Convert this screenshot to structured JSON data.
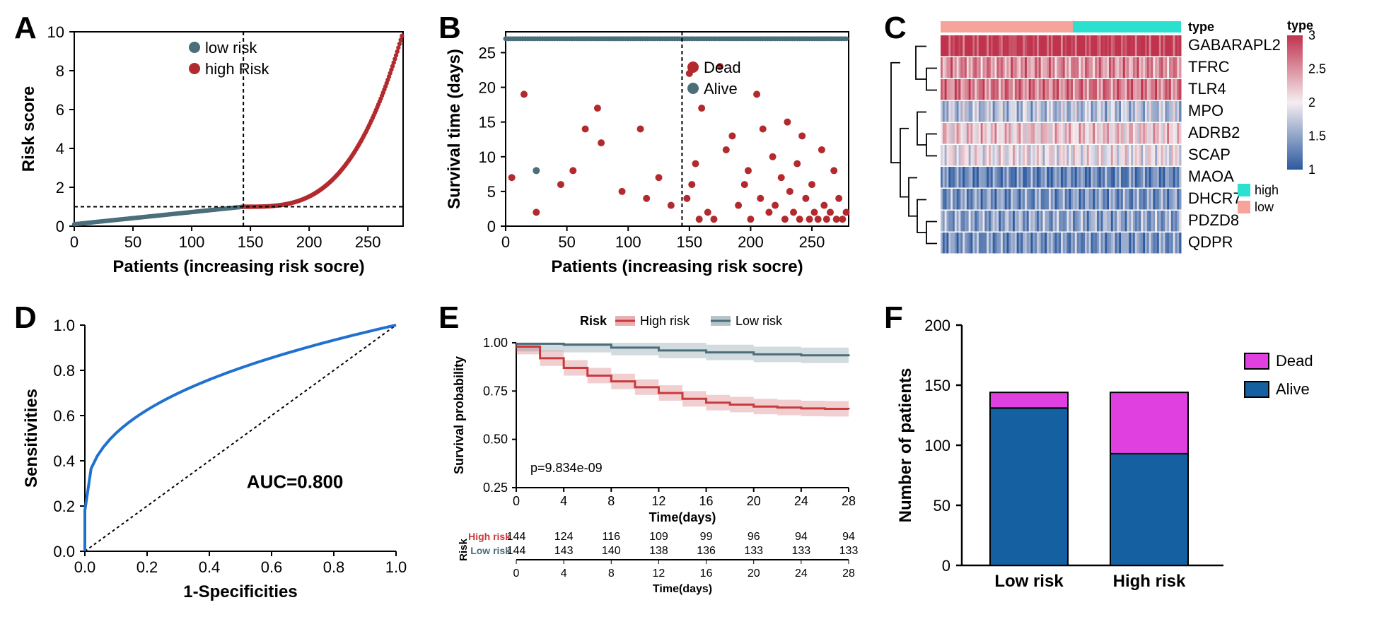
{
  "panelA": {
    "label": "A",
    "xlabel": "Patients (increasing risk socre)",
    "ylabel": "Risk score",
    "xticks": [
      0,
      50,
      100,
      150,
      200,
      250
    ],
    "yticks": [
      0,
      2,
      4,
      6,
      8,
      10
    ],
    "xlim": [
      0,
      280
    ],
    "ylim": [
      0,
      10
    ],
    "cutoff_x": 144,
    "cutoff_y": 1.0,
    "legend": {
      "low": "low risk",
      "high": "high Risk",
      "low_color": "#4a6e7a",
      "high_color": "#b22a2e"
    },
    "line_color_low": "#4a6e7a",
    "line_color_high": "#b22a2e"
  },
  "panelB": {
    "label": "B",
    "xlabel": "Patients (increasing risk socre)",
    "ylabel": "Survival time (days)",
    "xticks": [
      0,
      50,
      100,
      150,
      200,
      250
    ],
    "yticks": [
      0,
      5,
      10,
      15,
      20,
      25
    ],
    "xlim": [
      0,
      280
    ],
    "ylim": [
      0,
      28
    ],
    "cutoff_x": 144,
    "legend": {
      "dead": "Dead",
      "alive": "Alive",
      "dead_color": "#b22a2e",
      "alive_color": "#4a6e7a"
    },
    "points_dead": [
      [
        5,
        7
      ],
      [
        15,
        19
      ],
      [
        25,
        2
      ],
      [
        45,
        6
      ],
      [
        55,
        8
      ],
      [
        65,
        14
      ],
      [
        75,
        17
      ],
      [
        78,
        12
      ],
      [
        95,
        5
      ],
      [
        110,
        14
      ],
      [
        115,
        4
      ],
      [
        125,
        7
      ],
      [
        135,
        3
      ],
      [
        150,
        22
      ],
      [
        155,
        9
      ],
      [
        160,
        17
      ],
      [
        165,
        2
      ],
      [
        170,
        1
      ],
      [
        175,
        23
      ],
      [
        180,
        11
      ],
      [
        185,
        13
      ],
      [
        190,
        3
      ],
      [
        195,
        6
      ],
      [
        198,
        8
      ],
      [
        200,
        1
      ],
      [
        205,
        19
      ],
      [
        208,
        4
      ],
      [
        210,
        14
      ],
      [
        215,
        2
      ],
      [
        218,
        10
      ],
      [
        220,
        3
      ],
      [
        225,
        7
      ],
      [
        228,
        1
      ],
      [
        230,
        15
      ],
      [
        232,
        5
      ],
      [
        235,
        2
      ],
      [
        238,
        9
      ],
      [
        240,
        1
      ],
      [
        242,
        13
      ],
      [
        245,
        4
      ],
      [
        248,
        1
      ],
      [
        250,
        6
      ],
      [
        252,
        2
      ],
      [
        255,
        1
      ],
      [
        258,
        11
      ],
      [
        260,
        3
      ],
      [
        262,
        1
      ],
      [
        265,
        2
      ],
      [
        268,
        8
      ],
      [
        270,
        1
      ],
      [
        272,
        4
      ],
      [
        275,
        1
      ],
      [
        278,
        2
      ],
      [
        148,
        4
      ],
      [
        152,
        6
      ],
      [
        158,
        1
      ]
    ],
    "point_alive": [
      25,
      8
    ]
  },
  "panelC": {
    "label": "C",
    "type_label": "type",
    "high_label": "high",
    "low_label": "low",
    "high_color": "#2ce0d0",
    "low_color": "#f5a39b",
    "genes": [
      "GABARAPL2",
      "TFRC",
      "TLR4",
      "MPO",
      "ADRB2",
      "SCAP",
      "MAOA",
      "DHCR7",
      "PDZD8",
      "QDPR"
    ],
    "gene_heat": [
      3.0,
      2.5,
      2.6,
      1.7,
      2.2,
      2.0,
      1.3,
      1.4,
      1.5,
      1.4
    ],
    "colorscale": {
      "min": 1,
      "max": 3,
      "ticks": [
        1,
        1.5,
        2,
        2.5,
        3
      ],
      "low_color": "#2c5aa0",
      "mid_color": "#f5eef0",
      "high_color": "#c0334d"
    }
  },
  "panelD": {
    "label": "D",
    "xlabel": "1-Specificities",
    "ylabel": "Sensitivities",
    "ticks": [
      0.0,
      0.2,
      0.4,
      0.6,
      0.8,
      1.0
    ],
    "auc_text": "AUC=0.800",
    "curve_color": "#2070d0",
    "diag_color": "#000000"
  },
  "panelE": {
    "label": "E",
    "xlabel": "Time(days)",
    "ylabel": "Survival probability",
    "risk_label": "Risk",
    "high_label": "High risk",
    "low_label": "Low risk",
    "high_color": "#c93a3e",
    "low_color": "#4a6e7a",
    "xticks": [
      0,
      4,
      8,
      12,
      16,
      20,
      24,
      28
    ],
    "yticks": [
      0.25,
      0.5,
      0.75,
      1.0
    ],
    "p_text": "p=9.834e-09",
    "risk_table": {
      "label": "Risk",
      "high_label": "High risk",
      "low_label": "Low risk",
      "high_row": [
        144,
        124,
        116,
        109,
        99,
        96,
        94,
        94
      ],
      "low_row": [
        144,
        143,
        140,
        138,
        136,
        133,
        133,
        133
      ]
    },
    "high_curve": [
      [
        0,
        0.98
      ],
      [
        2,
        0.92
      ],
      [
        4,
        0.87
      ],
      [
        6,
        0.83
      ],
      [
        8,
        0.8
      ],
      [
        10,
        0.77
      ],
      [
        12,
        0.74
      ],
      [
        14,
        0.71
      ],
      [
        16,
        0.69
      ],
      [
        18,
        0.68
      ],
      [
        20,
        0.67
      ],
      [
        22,
        0.665
      ],
      [
        24,
        0.66
      ],
      [
        26,
        0.658
      ],
      [
        28,
        0.655
      ]
    ],
    "low_curve": [
      [
        0,
        0.995
      ],
      [
        4,
        0.99
      ],
      [
        8,
        0.975
      ],
      [
        12,
        0.96
      ],
      [
        16,
        0.95
      ],
      [
        20,
        0.94
      ],
      [
        24,
        0.935
      ],
      [
        28,
        0.93
      ]
    ]
  },
  "panelF": {
    "label": "F",
    "ylabel": "Number of patients",
    "yticks": [
      0,
      50,
      100,
      150,
      200
    ],
    "ylim": [
      0,
      200
    ],
    "categories": [
      "Low risk",
      "High risk"
    ],
    "legend": {
      "dead": "Dead",
      "alive": "Alive",
      "dead_color": "#e040e0",
      "alive_color": "#1560a0"
    },
    "bars": [
      {
        "alive": 131,
        "dead": 13
      },
      {
        "alive": 93,
        "dead": 51
      }
    ]
  }
}
